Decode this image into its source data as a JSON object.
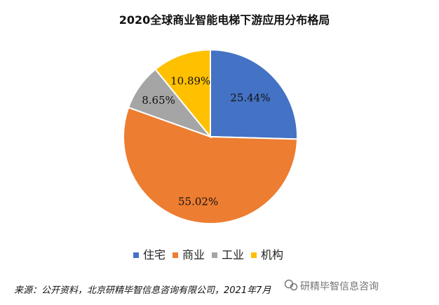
{
  "chart_data": {
    "type": "pie",
    "title": "2020全球商业智能电梯下游应用分布格局",
    "categories": [
      "住宅",
      "商业",
      "工业",
      "机构"
    ],
    "values": [
      25.44,
      55.02,
      8.65,
      10.89
    ],
    "labels": [
      "25.44%",
      "55.02%",
      "8.65%",
      "10.89%"
    ],
    "colors": [
      "#4472C4",
      "#ED7D31",
      "#A5A5A5",
      "#FFC000"
    ],
    "legend_position": "bottom"
  },
  "footer": {
    "source": "来源：公开资料，北京研精毕智信息咨询有限公司，2021年7月"
  },
  "watermark": {
    "text": "研精毕智信息咨询",
    "icon": "wechat-icon"
  }
}
